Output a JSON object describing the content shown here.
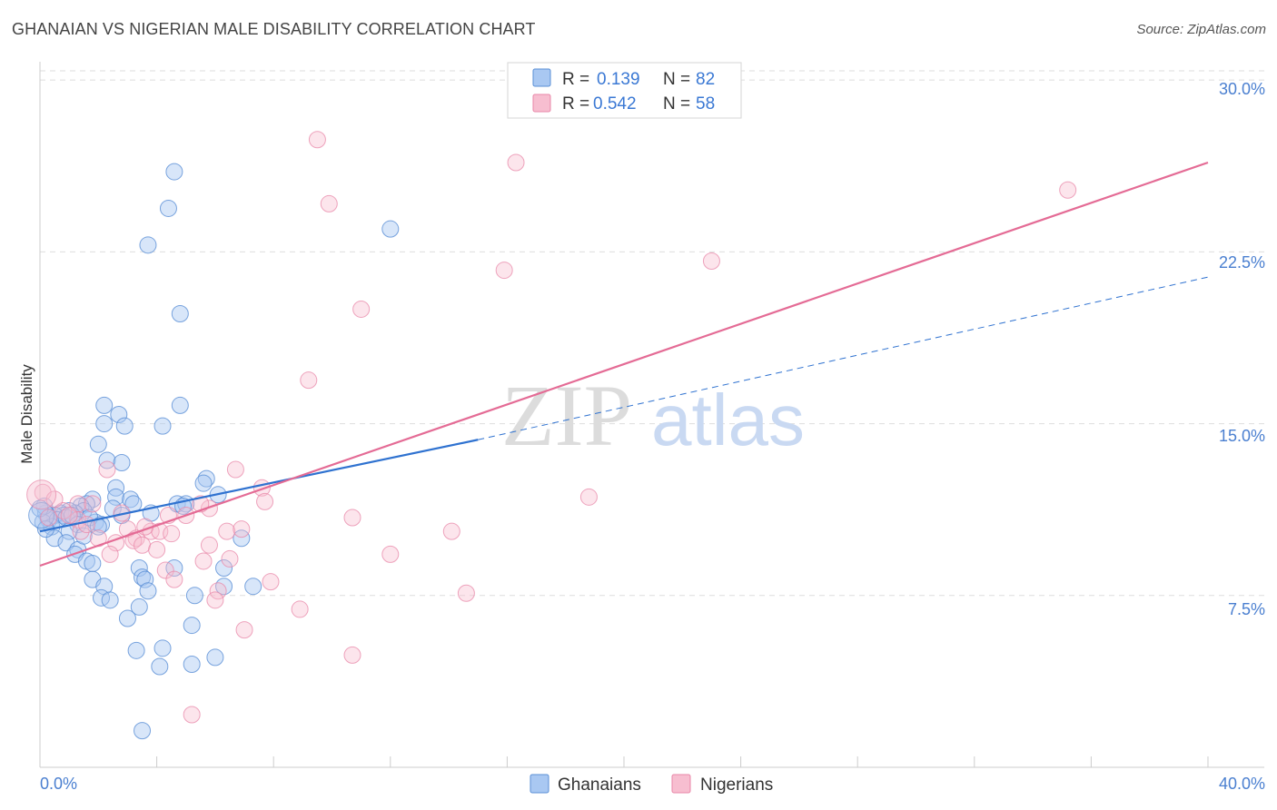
{
  "title": "GHANAIAN VS NIGERIAN MALE DISABILITY CORRELATION CHART",
  "source": "Source: ZipAtlas.com",
  "watermark": {
    "zip": "ZIP",
    "atlas": "atlas"
  },
  "colors": {
    "ghanaian_fill": "#a9c8f2",
    "ghanaian_stroke": "#5a8fd6",
    "ghanaian_line": "#2f72d0",
    "nigerian_fill": "#f7bed0",
    "nigerian_stroke": "#e887a8",
    "nigerian_line": "#e46b95",
    "tick_text": "#4a7fd0",
    "grid": "#dddddd"
  },
  "legend": {
    "rows": [
      {
        "r_label": "R =",
        "r_value": "0.139",
        "n_label": "N =",
        "n_value": "82"
      },
      {
        "r_label": "R =",
        "r_value": "0.542",
        "n_label": "N =",
        "n_value": "58"
      }
    ]
  },
  "chart_data": {
    "type": "scatter",
    "title": "GHANAIAN VS NIGERIAN MALE DISABILITY CORRELATION CHART",
    "xlabel": "",
    "ylabel": "Male Disability",
    "xlim": [
      0,
      40
    ],
    "ylim": [
      0,
      30.8
    ],
    "x_tick_labels": [
      "0.0%",
      "40.0%"
    ],
    "y_ticks": [
      7.5,
      15.0,
      22.5,
      30.0
    ],
    "y_tick_labels": [
      "7.5%",
      "15.0%",
      "22.5%",
      "30.0%"
    ],
    "grid": true,
    "legend_position": "top-center",
    "series": [
      {
        "name": "Ghanaians",
        "r": 0.139,
        "n": 82,
        "trend": {
          "x0": 0,
          "y0": 10.3,
          "x1": 15.0,
          "y1": 14.3,
          "dashed_to_x": 40,
          "dashed_to_y": 21.4
        },
        "points": [
          [
            4.6,
            26.0
          ],
          [
            4.4,
            24.4
          ],
          [
            3.7,
            22.8
          ],
          [
            4.8,
            19.8
          ],
          [
            12.0,
            23.5
          ],
          [
            2.2,
            15.8
          ],
          [
            2.7,
            15.4
          ],
          [
            4.8,
            15.8
          ],
          [
            2.2,
            15.0
          ],
          [
            2.9,
            14.9
          ],
          [
            4.2,
            14.9
          ],
          [
            2.0,
            14.1
          ],
          [
            2.3,
            13.4
          ],
          [
            2.8,
            13.3
          ],
          [
            2.6,
            12.2
          ],
          [
            5.7,
            12.6
          ],
          [
            5.6,
            12.4
          ],
          [
            6.1,
            11.9
          ],
          [
            2.6,
            11.8
          ],
          [
            3.1,
            11.7
          ],
          [
            3.2,
            11.5
          ],
          [
            4.7,
            11.5
          ],
          [
            5.0,
            11.5
          ],
          [
            4.9,
            11.4
          ],
          [
            2.5,
            11.3
          ],
          [
            1.8,
            11.7
          ],
          [
            1.6,
            11.5
          ],
          [
            1.4,
            11.4
          ],
          [
            1.5,
            11.2
          ],
          [
            1.2,
            11.1
          ],
          [
            1.0,
            11.2
          ],
          [
            0.7,
            11.1
          ],
          [
            0.8,
            11.0
          ],
          [
            0.5,
            11.0
          ],
          [
            0.3,
            10.8
          ],
          [
            0.2,
            11.1
          ],
          [
            0.15,
            11.4
          ],
          [
            0.1,
            10.7
          ],
          [
            0.4,
            10.5
          ],
          [
            0.6,
            10.8
          ],
          [
            0.9,
            10.9
          ],
          [
            1.1,
            11.0
          ],
          [
            1.3,
            10.6
          ],
          [
            1.9,
            10.7
          ],
          [
            1.7,
            10.9
          ],
          [
            3.8,
            11.1
          ],
          [
            1.0,
            10.3
          ],
          [
            0.5,
            10.0
          ],
          [
            0.9,
            9.8
          ],
          [
            2.1,
            10.6
          ],
          [
            1.3,
            9.5
          ],
          [
            1.2,
            9.3
          ],
          [
            1.6,
            9.0
          ],
          [
            1.8,
            8.9
          ],
          [
            6.9,
            10.0
          ],
          [
            3.4,
            8.7
          ],
          [
            4.6,
            8.7
          ],
          [
            6.3,
            8.7
          ],
          [
            1.8,
            8.2
          ],
          [
            3.5,
            8.3
          ],
          [
            3.6,
            8.2
          ],
          [
            2.2,
            7.9
          ],
          [
            3.7,
            7.7
          ],
          [
            6.3,
            7.9
          ],
          [
            7.3,
            7.9
          ],
          [
            2.1,
            7.4
          ],
          [
            2.4,
            7.3
          ],
          [
            5.3,
            7.5
          ],
          [
            3.4,
            7.0
          ],
          [
            3.0,
            6.5
          ],
          [
            5.2,
            6.2
          ],
          [
            3.3,
            5.1
          ],
          [
            4.2,
            5.2
          ],
          [
            6.0,
            4.8
          ],
          [
            4.1,
            4.4
          ],
          [
            5.2,
            4.5
          ],
          [
            3.5,
            1.6
          ],
          [
            0.2,
            10.4
          ],
          [
            0.0,
            11.3
          ],
          [
            2.0,
            10.5
          ],
          [
            1.5,
            10.1
          ],
          [
            2.8,
            11.0
          ]
        ]
      },
      {
        "name": "Nigerians",
        "r": 0.542,
        "n": 58,
        "trend": {
          "x0": 0,
          "y0": 8.8,
          "x1": 40,
          "y1": 26.4
        },
        "points": [
          [
            9.5,
            27.4
          ],
          [
            16.3,
            26.4
          ],
          [
            9.9,
            24.6
          ],
          [
            35.2,
            25.2
          ],
          [
            15.9,
            21.7
          ],
          [
            23.0,
            22.1
          ],
          [
            11.0,
            20.0
          ],
          [
            9.2,
            16.9
          ],
          [
            6.7,
            13.0
          ],
          [
            2.3,
            13.0
          ],
          [
            18.8,
            11.8
          ],
          [
            7.6,
            12.2
          ],
          [
            7.7,
            11.6
          ],
          [
            5.8,
            11.3
          ],
          [
            5.0,
            11.0
          ],
          [
            10.7,
            10.9
          ],
          [
            1.3,
            11.5
          ],
          [
            1.8,
            11.5
          ],
          [
            0.1,
            12.0
          ],
          [
            0.8,
            11.2
          ],
          [
            1.3,
            10.8
          ],
          [
            1.4,
            10.3
          ],
          [
            2.0,
            10.0
          ],
          [
            3.0,
            10.4
          ],
          [
            3.8,
            10.3
          ],
          [
            4.1,
            10.3
          ],
          [
            6.4,
            10.3
          ],
          [
            6.9,
            10.4
          ],
          [
            4.5,
            10.2
          ],
          [
            14.1,
            10.3
          ],
          [
            3.3,
            10.0
          ],
          [
            2.6,
            9.8
          ],
          [
            3.2,
            9.9
          ],
          [
            3.5,
            9.7
          ],
          [
            4.0,
            9.5
          ],
          [
            5.8,
            9.7
          ],
          [
            6.5,
            9.1
          ],
          [
            12.0,
            9.3
          ],
          [
            2.4,
            9.3
          ],
          [
            5.6,
            9.0
          ],
          [
            4.3,
            8.6
          ],
          [
            4.6,
            8.2
          ],
          [
            7.9,
            8.1
          ],
          [
            6.1,
            7.7
          ],
          [
            14.6,
            7.6
          ],
          [
            6.0,
            7.3
          ],
          [
            8.9,
            6.9
          ],
          [
            7.0,
            6.0
          ],
          [
            10.7,
            4.9
          ],
          [
            5.2,
            2.3
          ],
          [
            0.5,
            11.7
          ],
          [
            1.0,
            11.0
          ],
          [
            0.3,
            10.9
          ],
          [
            2.8,
            11.1
          ],
          [
            4.4,
            11.0
          ],
          [
            5.5,
            11.5
          ],
          [
            1.6,
            10.6
          ],
          [
            3.6,
            10.5
          ]
        ]
      }
    ]
  }
}
